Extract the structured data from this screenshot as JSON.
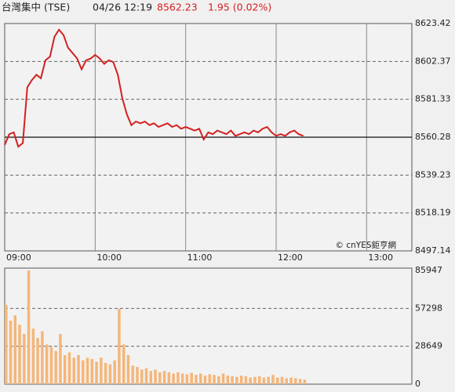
{
  "header": {
    "name": "台灣集中 (TSE)",
    "time": "04/26 12:19",
    "price": "8562.23",
    "change": "1.95 (0.02%)"
  },
  "copyright": "© cnYES鉅亨網",
  "chart_data": [
    {
      "type": "line",
      "color": "#d42020",
      "x": [
        "09:00",
        "09:03",
        "09:06",
        "09:09",
        "09:12",
        "09:15",
        "09:18",
        "09:21",
        "09:24",
        "09:27",
        "09:30",
        "09:33",
        "09:36",
        "09:39",
        "09:42",
        "09:45",
        "09:48",
        "09:51",
        "09:54",
        "09:57",
        "10:00",
        "10:03",
        "10:06",
        "10:09",
        "10:12",
        "10:15",
        "10:18",
        "10:21",
        "10:24",
        "10:27",
        "10:30",
        "10:33",
        "10:36",
        "10:39",
        "10:42",
        "10:45",
        "10:48",
        "10:51",
        "10:54",
        "10:57",
        "11:00",
        "11:03",
        "11:06",
        "11:09",
        "11:12",
        "11:15",
        "11:18",
        "11:21",
        "11:24",
        "11:27",
        "11:30",
        "11:33",
        "11:36",
        "11:39",
        "11:42",
        "11:45",
        "11:48",
        "11:51",
        "11:54",
        "11:57",
        "12:00",
        "12:03",
        "12:06",
        "12:09",
        "12:12",
        "12:15",
        "12:18"
      ],
      "values": [
        8556,
        8562,
        8563,
        8555,
        8557,
        8588,
        8592,
        8595,
        8593,
        8603,
        8605,
        8616,
        8620,
        8617,
        8610,
        8607,
        8604,
        8598,
        8603,
        8604,
        8606,
        8604,
        8601,
        8603,
        8602,
        8595,
        8582,
        8573,
        8567,
        8569,
        8568,
        8569,
        8567,
        8568,
        8566,
        8567,
        8568,
        8566,
        8567,
        8565,
        8566,
        8565,
        8564,
        8565,
        8559,
        8563,
        8562,
        8564,
        8563,
        8562,
        8564,
        8561,
        8562,
        8563,
        8562,
        8564,
        8563,
        8565,
        8566,
        8563,
        8561,
        8562,
        8561,
        8563,
        8564,
        8562,
        8561
      ],
      "xlim": [
        "09:00",
        "13:30"
      ],
      "xticks": [
        "09:00",
        "10:00",
        "11:00",
        "12:00",
        "13:00"
      ],
      "ylim": [
        8497.14,
        8623.42
      ],
      "yticks": [
        8497.14,
        8518.19,
        8539.23,
        8560.28,
        8581.33,
        8602.37,
        8623.42
      ],
      "reference": 8560.28
    },
    {
      "type": "bar",
      "color": "#f4b67a",
      "x": [
        "09:00",
        "09:03",
        "09:06",
        "09:09",
        "09:12",
        "09:15",
        "09:18",
        "09:21",
        "09:24",
        "09:27",
        "09:30",
        "09:33",
        "09:36",
        "09:39",
        "09:42",
        "09:45",
        "09:48",
        "09:51",
        "09:54",
        "09:57",
        "10:00",
        "10:03",
        "10:06",
        "10:09",
        "10:12",
        "10:15",
        "10:18",
        "10:21",
        "10:24",
        "10:27",
        "10:30",
        "10:33",
        "10:36",
        "10:39",
        "10:42",
        "10:45",
        "10:48",
        "10:51",
        "10:54",
        "10:57",
        "11:00",
        "11:03",
        "11:06",
        "11:09",
        "11:12",
        "11:15",
        "11:18",
        "11:21",
        "11:24",
        "11:27",
        "11:30",
        "11:33",
        "11:36",
        "11:39",
        "11:42",
        "11:45",
        "11:48",
        "11:51",
        "11:54",
        "11:57",
        "12:00",
        "12:03",
        "12:06",
        "12:09",
        "12:12",
        "12:15",
        "12:18"
      ],
      "values": [
        60000,
        48000,
        52000,
        45000,
        38000,
        86000,
        42000,
        35000,
        40000,
        30000,
        28000,
        25000,
        38000,
        22000,
        24000,
        20000,
        22000,
        18000,
        20000,
        19000,
        17000,
        20000,
        16000,
        15000,
        18000,
        57000,
        30000,
        22000,
        14000,
        13000,
        11000,
        12000,
        10000,
        11000,
        9000,
        10000,
        9000,
        8000,
        9000,
        8000,
        7500,
        8500,
        7000,
        8000,
        6500,
        7500,
        7000,
        6000,
        8000,
        6500,
        6000,
        5500,
        6500,
        6000,
        5000,
        5500,
        6000,
        5000,
        5500,
        7000,
        5000,
        5500,
        4500,
        5000,
        4500,
        4000,
        3500
      ],
      "xlim": [
        "09:00",
        "13:30"
      ],
      "ylim": [
        0,
        85947
      ],
      "yticks": [
        0,
        28649,
        57298,
        85947
      ]
    }
  ]
}
